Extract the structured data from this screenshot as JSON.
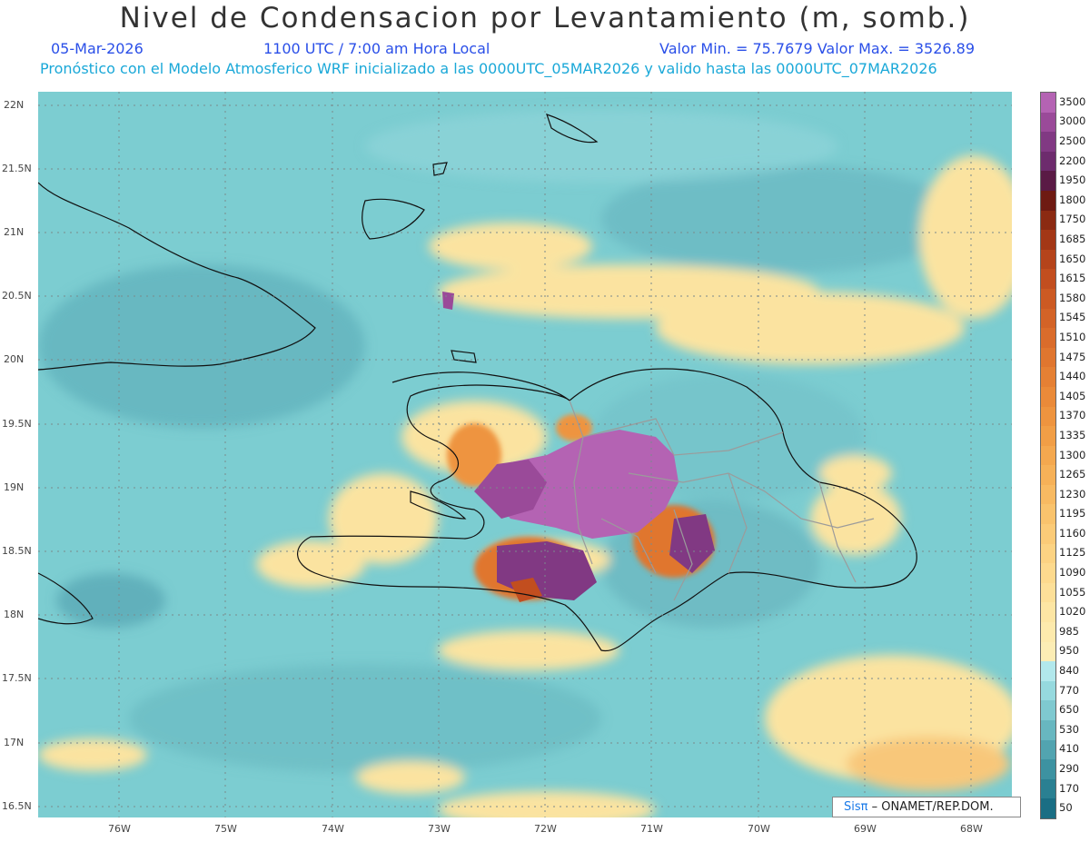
{
  "header": {
    "title": "Nivel de Condensacion por Levantamiento (m, somb.)",
    "date": "05-Mar-2026",
    "time": "1100 UTC / 7:00 am Hora Local",
    "min_max": "Valor Min. = 75.7679  Valor Max. = 3526.89",
    "forecast_info": "Pronóstico con el Modelo Atmosferico WRF inicializado a las 0000UTC_05MAR2026 y valido hasta las  0000UTC_07MAR2026"
  },
  "map": {
    "lat_labels": [
      "22N",
      "21.5N",
      "21N",
      "20.5N",
      "20N",
      "19.5N",
      "19N",
      "18.5N",
      "18N",
      "17.5N",
      "17N",
      "16.5N"
    ],
    "lon_labels": [
      "76W",
      "75W",
      "74W",
      "73W",
      "72W",
      "71W",
      "70W",
      "69W",
      "68W"
    ],
    "lat_range": [
      16.4,
      22.1
    ],
    "lon_range": [
      76.75,
      67.6
    ],
    "background_color": "#7ccdd1"
  },
  "colorbar": {
    "levels": [
      "3500",
      "3000",
      "2500",
      "2200",
      "1950",
      "1800",
      "1750",
      "1685",
      "1650",
      "1615",
      "1580",
      "1545",
      "1510",
      "1475",
      "1440",
      "1405",
      "1370",
      "1335",
      "1300",
      "1265",
      "1230",
      "1195",
      "1160",
      "1125",
      "1090",
      "1055",
      "1020",
      "985",
      "950",
      "840",
      "770",
      "650",
      "530",
      "410",
      "290",
      "170",
      "50"
    ],
    "colors": [
      "#b463b3",
      "#9a4a99",
      "#813983",
      "#6d2b6d",
      "#5a1a45",
      "#6e1a12",
      "#8b2a12",
      "#a33716",
      "#b5441b",
      "#c24e1f",
      "#cc5a23",
      "#d36327",
      "#da6c2b",
      "#e0762f",
      "#e58034",
      "#ea8a39",
      "#ee943f",
      "#f19e46",
      "#f4a84f",
      "#f6b158",
      "#f8ba62",
      "#f9c36d",
      "#fbcb78",
      "#fcd383",
      "#fdda8e",
      "#fde099",
      "#fde6a4",
      "#fdeaad",
      "#fcedb5",
      "#b2e8ec",
      "#96d9de",
      "#7fc9d0",
      "#68b7c0",
      "#52a4b0",
      "#3d92a1",
      "#2a8092",
      "#1a6e84"
    ]
  },
  "credit": {
    "logo": "Sisπ",
    "text": "– ONAMET/REP.DOM."
  }
}
